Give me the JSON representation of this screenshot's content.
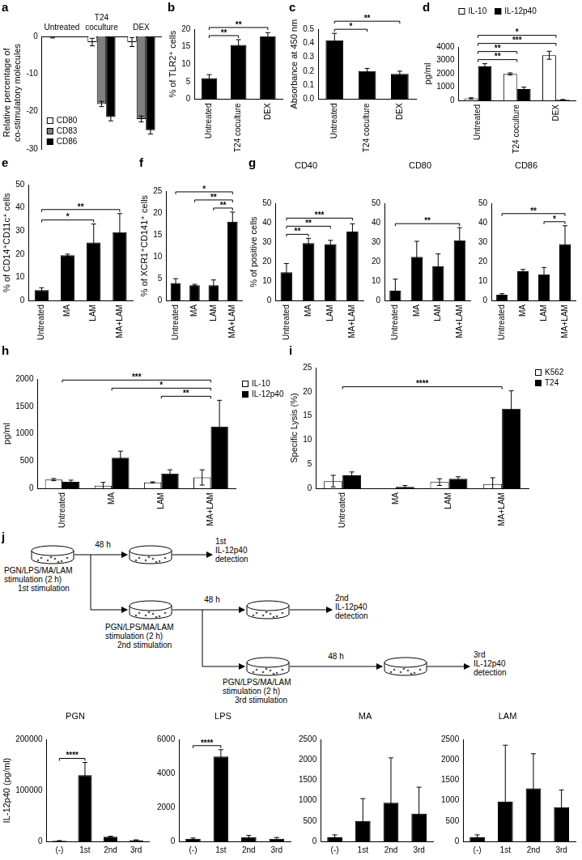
{
  "chart_data": [
    {
      "type": "bar",
      "panel": "a",
      "y_label": "Relative percentage of co-stimulatory molecules",
      "categories": [
        "Untreated",
        "T24 coculture",
        "DEX"
      ],
      "series": [
        {
          "name": "CD80",
          "color": "#ffffff",
          "values": [
            0,
            -1.5,
            -1.5
          ],
          "errors": [
            0.4,
            1,
            1.2
          ]
        },
        {
          "name": "CD83",
          "color": "#808080",
          "values": [
            0,
            -18,
            -22
          ],
          "errors": [
            0,
            0.7,
            0.8
          ]
        },
        {
          "name": "CD86",
          "color": "#000000",
          "values": [
            0,
            -21.5,
            -25
          ],
          "errors": [
            0,
            1,
            1
          ]
        }
      ],
      "ylim": [
        -30,
        0
      ],
      "yticks": [
        -30,
        -20,
        -10,
        0
      ],
      "grid": false,
      "legend": "bottom-left"
    },
    {
      "type": "bar",
      "panel": "b",
      "y_label": "% of TLR2⁺ cells",
      "categories": [
        "Untreated",
        "T24 coculture",
        "DEX"
      ],
      "color": "#000000",
      "values": [
        6,
        15.5,
        18
      ],
      "errors": [
        1,
        1.5,
        1
      ],
      "ylim": [
        0,
        20
      ],
      "yticks": [
        0,
        5,
        10,
        15,
        20
      ],
      "grid": false,
      "annotations": [
        {
          "from": "Untreated",
          "to": "T24 coculture",
          "text": "**"
        },
        {
          "from": "Untreated",
          "to": "DEX",
          "text": "**"
        }
      ]
    },
    {
      "type": "bar",
      "panel": "c",
      "y_label": "Absorbance at 450 nm",
      "categories": [
        "Untreated",
        "T24 coculture",
        "DEX"
      ],
      "color": "#000000",
      "values": [
        0.42,
        0.2,
        0.18
      ],
      "errors": [
        0.05,
        0.02,
        0.02
      ],
      "ylim": [
        0,
        0.5
      ],
      "yticks": [
        {
          "value": 0,
          "label": "0.0"
        },
        0.1,
        0.2,
        0.3,
        0.4,
        0.5
      ],
      "grid": false,
      "annotations": [
        {
          "from": "Untreated",
          "to": "T24 coculture",
          "text": "*"
        },
        {
          "from": "Untreated",
          "to": "DEX",
          "text": "**"
        }
      ]
    },
    {
      "type": "bar",
      "panel": "d",
      "y_label": "pg/ml",
      "categories": [
        "Untreated",
        "T24 coculture",
        "DEX"
      ],
      "series": [
        {
          "name": "IL-10",
          "color": "#ffffff",
          "values": [
            150,
            1980,
            3380
          ],
          "errors": [
            50,
            80,
            300
          ]
        },
        {
          "name": "IL-12p40",
          "color": "#000000",
          "values": [
            2550,
            850,
            50
          ],
          "errors": [
            200,
            150,
            20
          ]
        }
      ],
      "ylim": [
        0,
        4000
      ],
      "yticks": [
        0,
        1000,
        2000,
        3000,
        4000
      ],
      "grid": false,
      "legend": "top",
      "annotations": [
        {
          "from": "Untreated",
          "to": "T24 coculture",
          "text": "**"
        },
        {
          "from": "Untreated",
          "to": "T24 coculture",
          "text": "**"
        },
        {
          "from": "Untreated",
          "to": "DEX",
          "text": "***"
        },
        {
          "from": "Untreated",
          "to": "DEX",
          "text": "*"
        }
      ]
    },
    {
      "type": "bar",
      "panel": "e",
      "y_label": "% of CD14⁺CD11c⁺ cells",
      "categories": [
        "Untreated",
        "MA",
        "LAM",
        "MA+LAM"
      ],
      "color": "#000000",
      "values": [
        4.5,
        19.5,
        25,
        29.5
      ],
      "errors": [
        1,
        0.5,
        8,
        8
      ],
      "ylim": [
        0,
        50
      ],
      "yticks": [
        0,
        10,
        20,
        30,
        40,
        50
      ],
      "grid": false,
      "annotations": [
        {
          "from": "Untreated",
          "to": "LAM",
          "text": "*"
        },
        {
          "from": "Untreated",
          "to": "MA+LAM",
          "text": "**"
        }
      ]
    },
    {
      "type": "bar",
      "panel": "f",
      "y_label": "% of XCR1⁺CD141⁺ cells",
      "categories": [
        "Untreated",
        "MA",
        "LAM",
        "MA+LAM"
      ],
      "color": "#000000",
      "values": [
        4,
        3.5,
        3.5,
        18
      ],
      "errors": [
        1,
        0.2,
        1.2,
        2.2
      ],
      "ylim": [
        0,
        25
      ],
      "yticks": [
        0,
        5,
        10,
        15,
        20,
        25
      ],
      "grid": false,
      "annotations": [
        {
          "from": "LAM",
          "to": "MA+LAM",
          "text": "**"
        },
        {
          "from": "MA",
          "to": "MA+LAM",
          "text": "**"
        },
        {
          "from": "Untreated",
          "to": "MA+LAM",
          "text": "*"
        }
      ]
    },
    {
      "type": "bar",
      "panel": "g",
      "title": "CD40",
      "y_label": "% of positive cells",
      "categories": [
        "Untreated",
        "MA",
        "LAM",
        "MA+LAM"
      ],
      "color": "#000000",
      "values": [
        14.5,
        29.5,
        29,
        35.5
      ],
      "errors": [
        4.5,
        2.5,
        2,
        4
      ],
      "ylim": [
        0,
        50
      ],
      "yticks": [
        0,
        10,
        20,
        30,
        40,
        50
      ],
      "grid": false,
      "annotations": [
        {
          "from": "Untreated",
          "to": "MA",
          "text": "**"
        },
        {
          "from": "Untreated",
          "to": "LAM",
          "text": "**"
        },
        {
          "from": "Untreated",
          "to": "MA+LAM",
          "text": "***"
        }
      ]
    },
    {
      "type": "bar",
      "title": "CD80",
      "categories": [
        "Untreated",
        "MA",
        "LAM",
        "MA+LAM"
      ],
      "color": "#000000",
      "values": [
        5,
        22.5,
        17.5,
        31
      ],
      "errors": [
        6,
        8,
        6.5,
        6.5
      ],
      "ylim": [
        0,
        50
      ],
      "yticks": [
        0,
        10,
        20,
        30,
        40,
        50
      ],
      "grid": false,
      "annotations": [
        {
          "from": "Untreated",
          "to": "MA+LAM",
          "text": "**"
        }
      ]
    },
    {
      "type": "bar",
      "title": "CD86",
      "categories": [
        "Untreated",
        "MA",
        "LAM",
        "MA+LAM"
      ],
      "color": "#000000",
      "values": [
        3,
        15,
        13.5,
        29
      ],
      "errors": [
        0.5,
        1,
        3.5,
        9.5
      ],
      "ylim": [
        0,
        50
      ],
      "yticks": [
        0,
        10,
        20,
        30,
        40,
        50
      ],
      "grid": false,
      "annotations": [
        {
          "from": "LAM",
          "to": "MA+LAM",
          "text": "*"
        },
        {
          "from": "Untreated",
          "to": "MA+LAM",
          "text": "**"
        }
      ]
    },
    {
      "type": "bar",
      "panel": "h",
      "y_label": "pg/ml",
      "categories": [
        "Untreated",
        "MA",
        "LAM",
        "MA+LAM"
      ],
      "series": [
        {
          "name": "IL-10",
          "color": "#ffffff",
          "values": [
            160,
            50,
            110,
            200
          ],
          "errors": [
            20,
            60,
            10,
            140
          ]
        },
        {
          "name": "IL-12p40",
          "color": "#000000",
          "values": [
            120,
            560,
            270,
            1130
          ],
          "errors": [
            30,
            120,
            70,
            480
          ]
        }
      ],
      "ylim": [
        0,
        2000
      ],
      "yticks": [
        0,
        500,
        1000,
        1500,
        2000
      ],
      "grid": false,
      "legend": "right",
      "annotations": [
        {
          "from": "LAM",
          "to": "MA+LAM",
          "text": "**"
        },
        {
          "from": "MA",
          "to": "MA+LAM",
          "text": "*"
        },
        {
          "from": "Untreated",
          "to": "MA+LAM",
          "text": "***"
        }
      ]
    },
    {
      "type": "bar",
      "panel": "i",
      "y_label": "Specific Lysis (%)",
      "categories": [
        "Untreated",
        "MA",
        "LAM",
        "MA+LAM"
      ],
      "series": [
        {
          "name": "K562",
          "color": "#ffffff",
          "values": [
            1.5,
            0,
            1.3,
            0.9
          ],
          "errors": [
            1.2,
            0,
            0.7,
            1.3
          ]
        },
        {
          "name": "T24",
          "color": "#000000",
          "values": [
            2.7,
            0.3,
            2,
            16.5
          ],
          "errors": [
            0.7,
            0.3,
            0.4,
            3.7
          ]
        }
      ],
      "ylim": [
        0,
        25
      ],
      "yticks": [
        0,
        5,
        10,
        15,
        20,
        25
      ],
      "grid": false,
      "legend": "right",
      "annotations": [
        {
          "from": "Untreated",
          "to": "MA+LAM",
          "text": "****"
        }
      ]
    },
    {
      "type": "bar",
      "title": "PGN",
      "y_label": "IL-12p40 (pg/ml)",
      "categories": [
        "(-)",
        "1st",
        "2nd",
        "3rd"
      ],
      "color": "#000000",
      "values": [
        1000,
        130000,
        9000,
        2500
      ],
      "errors": [
        500,
        25000,
        1000,
        500
      ],
      "ylim": [
        0,
        200000
      ],
      "yticks": [
        0,
        100000,
        200000
      ],
      "grid": false,
      "annotations": [
        {
          "from": "(-)",
          "to": "1st",
          "text": "****"
        }
      ]
    },
    {
      "type": "bar",
      "title": "LPS",
      "categories": [
        "(-)",
        "1st",
        "2nd",
        "3rd"
      ],
      "color": "#000000",
      "values": [
        150,
        5000,
        250,
        150
      ],
      "errors": [
        50,
        400,
        100,
        80
      ],
      "ylim": [
        0,
        6000
      ],
      "yticks": [
        0,
        2000,
        4000,
        6000
      ],
      "grid": false,
      "annotations": [
        {
          "from": "(-)",
          "to": "1st",
          "text": "****"
        }
      ]
    },
    {
      "type": "bar",
      "title": "MA",
      "categories": [
        "(-)",
        "1st",
        "2nd",
        "3rd"
      ],
      "color": "#000000",
      "values": [
        100,
        500,
        950,
        680
      ],
      "errors": [
        60,
        550,
        1100,
        650
      ],
      "ylim": [
        0,
        2500
      ],
      "yticks": [
        0,
        500,
        1000,
        1500,
        2000,
        2500
      ],
      "grid": false
    },
    {
      "type": "bar",
      "title": "LAM",
      "categories": [
        "(-)",
        "1st",
        "2nd",
        "3rd"
      ],
      "color": "#000000",
      "values": [
        100,
        980,
        1300,
        840
      ],
      "errors": [
        60,
        1380,
        850,
        420
      ],
      "ylim": [
        0,
        2500
      ],
      "yticks": [
        0,
        500,
        1000,
        1500,
        2000,
        2500
      ],
      "grid": false
    }
  ],
  "diagram": {
    "panel": "j",
    "stimulations": [
      [
        "PGN/LPS/MA/LAM",
        "stimulation (2 h)",
        "1st stimulation"
      ],
      [
        "PGN/LPS/MA/LAM",
        "stimulation (2 h)",
        "2nd stimulation"
      ],
      [
        "PGN/LPS/MA/LAM",
        "stimulation (2 h)",
        "3rd stimulation"
      ]
    ],
    "intervals": [
      "48 h",
      "48 h",
      "48 h"
    ],
    "detections": [
      [
        "1st",
        "IL-12p40",
        "detection"
      ],
      [
        "2nd",
        "IL-12p40",
        "detection"
      ],
      [
        "3rd",
        "IL-12p40",
        "detection"
      ]
    ]
  }
}
